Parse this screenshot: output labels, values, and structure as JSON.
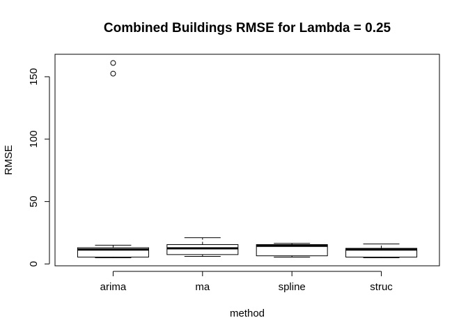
{
  "chart_data": {
    "type": "boxplot",
    "title": "Combined Buildings RMSE for Lambda =  0.25",
    "xlabel": "method",
    "ylabel": "RMSE",
    "categories": [
      "arima",
      "ma",
      "spline",
      "struc"
    ],
    "yticks": [
      0,
      50,
      100,
      150
    ],
    "ylim": [
      -1.5,
      168
    ],
    "boxes": [
      {
        "name": "arima",
        "whisker_low": 5,
        "q1": 5.5,
        "median": 11.5,
        "q3": 13,
        "whisker_high": 15,
        "outliers": [
          152.5,
          161
        ]
      },
      {
        "name": "ma",
        "whisker_low": 6,
        "q1": 7.5,
        "median": 12.5,
        "q3": 15.5,
        "whisker_high": 21,
        "outliers": []
      },
      {
        "name": "spline",
        "whisker_low": 5.5,
        "q1": 6.5,
        "median": 14.5,
        "q3": 15.5,
        "whisker_high": 16.5,
        "outliers": []
      },
      {
        "name": "struc",
        "whisker_low": 5,
        "q1": 5.5,
        "median": 11.5,
        "q3": 12.5,
        "whisker_high": 16,
        "outliers": []
      }
    ],
    "grid": false,
    "legend": "none"
  }
}
